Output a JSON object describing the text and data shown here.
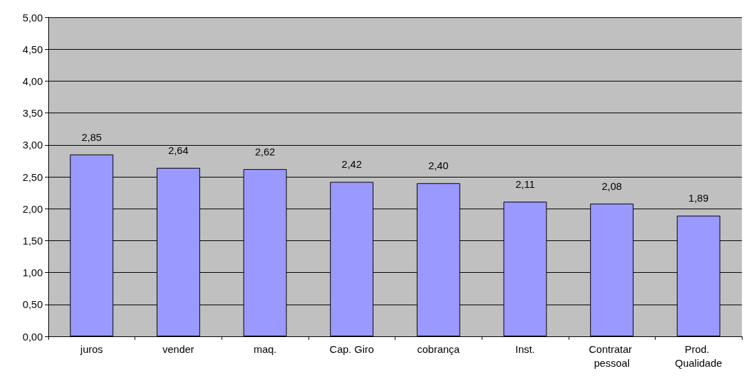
{
  "chart_data": {
    "type": "bar",
    "categories": [
      "juros",
      "vender",
      "maq.",
      "Cap. Giro",
      "cobrança",
      "Inst.",
      "Contratar pessoal",
      "Prod. Qualidade"
    ],
    "values": [
      2.85,
      2.64,
      2.62,
      2.42,
      2.4,
      2.11,
      2.08,
      1.89
    ],
    "value_labels": [
      "2,85",
      "2,64",
      "2,62",
      "2,42",
      "2,40",
      "2,11",
      "2,08",
      "1,89"
    ],
    "color": "#9999ff",
    "ylim": [
      0,
      5
    ],
    "yticks": [
      {
        "value": 0,
        "label": "0,00"
      },
      {
        "value": 0.5,
        "label": "0,50"
      },
      {
        "value": 1,
        "label": "1,00"
      },
      {
        "value": 1.5,
        "label": "1,50"
      },
      {
        "value": 2,
        "label": "2,00"
      },
      {
        "value": 2.5,
        "label": "2,50"
      },
      {
        "value": 3,
        "label": "3,00"
      },
      {
        "value": 3.5,
        "label": "3,50"
      },
      {
        "value": 4,
        "label": "4,00"
      },
      {
        "value": 4.5,
        "label": "4,50"
      },
      {
        "value": 5,
        "label": "5,00"
      }
    ],
    "grid": "y"
  }
}
